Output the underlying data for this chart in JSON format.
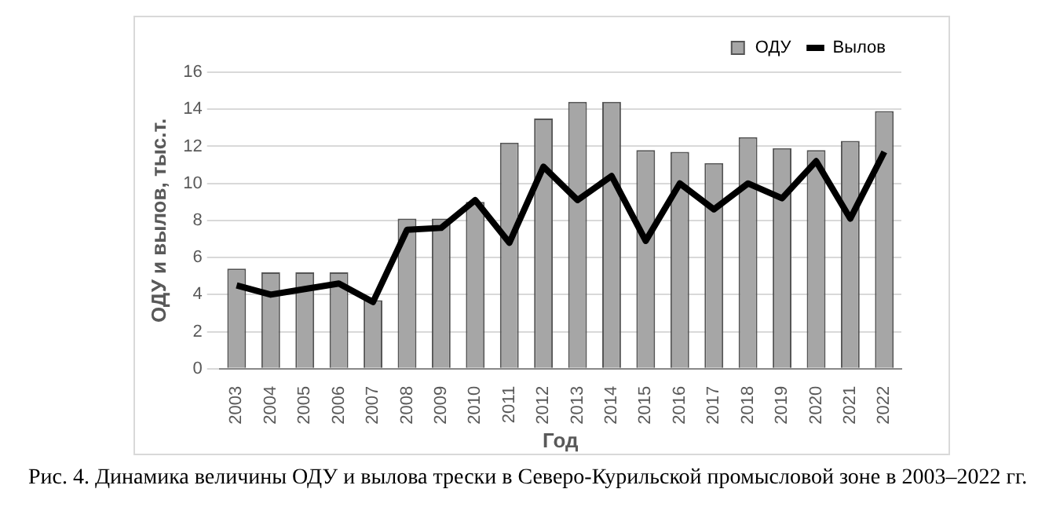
{
  "chart_data": {
    "type": "bar",
    "xlabel": "Год",
    "ylabel": "ОДУ и вылов, тыс.т.",
    "categories": [
      "2003",
      "2004",
      "2005",
      "2006",
      "2007",
      "2008",
      "2009",
      "2010",
      "2011",
      "2012",
      "2013",
      "2014",
      "2015",
      "2016",
      "2017",
      "2018",
      "2019",
      "2020",
      "2021",
      "2022"
    ],
    "series": [
      {
        "name": "ОДУ",
        "color": "#a6a6a6",
        "values": [
          5.4,
          5.2,
          5.2,
          5.2,
          3.7,
          8.1,
          8.1,
          9.0,
          12.2,
          13.5,
          14.4,
          14.4,
          11.8,
          11.7,
          11.1,
          12.5,
          11.9,
          11.8,
          12.3,
          13.9
        ]
      },
      {
        "name": "Вылов",
        "type": "line",
        "color": "#000000",
        "values": [
          4.5,
          4.0,
          4.3,
          4.6,
          3.6,
          7.5,
          7.6,
          9.1,
          6.8,
          10.9,
          9.1,
          10.4,
          6.9,
          10.0,
          8.6,
          10.0,
          9.2,
          11.2,
          8.1,
          11.7
        ]
      }
    ],
    "ylim": [
      0,
      16
    ],
    "yticks": [
      0,
      2,
      4,
      6,
      8,
      10,
      12,
      14,
      16
    ],
    "grid": "y",
    "legend": "top right",
    "marker": "none",
    "annotations": [
      "Рис. 4. Динамика величины ОДУ и вылова трески в Северо-Курильской промысловой зоне в 2003–2022 гг."
    ]
  }
}
